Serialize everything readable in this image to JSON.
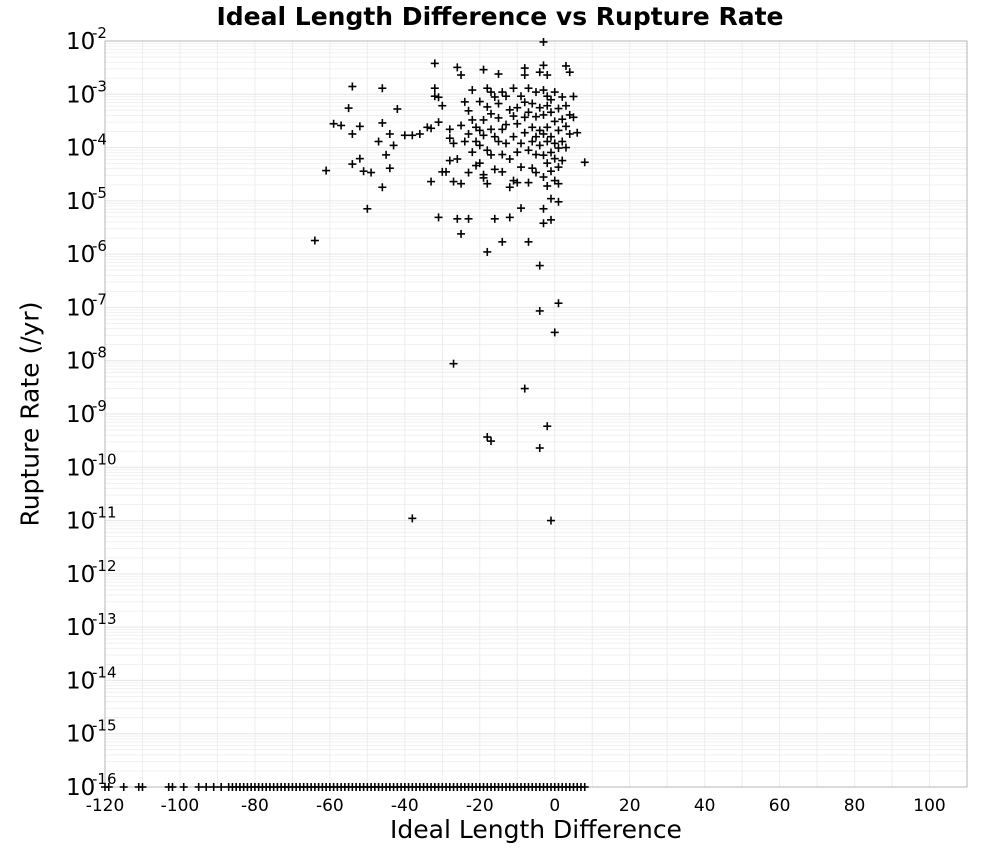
{
  "chart_data": {
    "type": "scatter",
    "title": "Ideal Length Difference vs Rupture Rate",
    "xlabel": "Ideal Length Difference",
    "ylabel": "Rupture Rate (/yr)",
    "xlim": [
      -120,
      110
    ],
    "ylim": [
      1e-16,
      0.01
    ],
    "y_scale": "log",
    "x_ticks": [
      -120,
      -100,
      -80,
      -60,
      -40,
      -20,
      0,
      20,
      40,
      60,
      80,
      100
    ],
    "y_tick_exponents": [
      -2,
      -3,
      -4,
      -5,
      -6,
      -7,
      -8,
      -9,
      -10,
      -11,
      -12,
      -13,
      -14,
      -15,
      -16
    ],
    "y_tick_base": "10",
    "grid": true,
    "legend": "none",
    "marker": "plus",
    "colors": {
      "marker": "#000000",
      "grid": "#e6e6e6",
      "frame": "#b5b5b5"
    },
    "series": [
      {
        "points": [
          [
            -64,
            1.8e-06
          ],
          [
            -61,
            3.7e-05
          ],
          [
            -59,
            0.00028
          ],
          [
            -57,
            0.00026
          ],
          [
            -55,
            0.00055
          ],
          [
            -54,
            0.0014
          ],
          [
            -54,
            4.9e-05
          ],
          [
            -54,
            0.00018
          ],
          [
            -52,
            6.2e-05
          ],
          [
            -52,
            0.00025
          ],
          [
            -51,
            3.6e-05
          ],
          [
            -50,
            7.1e-06
          ],
          [
            -49,
            3.4e-05
          ],
          [
            -47,
            0.00013
          ],
          [
            -46,
            0.0013
          ],
          [
            -46,
            0.00029
          ],
          [
            -46,
            1.8e-05
          ],
          [
            -45,
            7.3e-05
          ],
          [
            -44,
            4.1e-05
          ],
          [
            -44,
            0.00018
          ],
          [
            -43,
            0.00011
          ],
          [
            -42,
            0.00053
          ],
          [
            -40,
            0.00017
          ],
          [
            -38,
            1.1e-11
          ],
          [
            -38,
            0.00017
          ],
          [
            -36,
            0.00018
          ],
          [
            -34,
            0.00024
          ],
          [
            -33,
            0.00023
          ],
          [
            -33,
            2.3e-05
          ],
          [
            -32,
            0.0038
          ],
          [
            -32,
            0.0013
          ],
          [
            -32,
            0.00092
          ],
          [
            -31,
            0.00088
          ],
          [
            -31,
            4.9e-06
          ],
          [
            -31,
            0.0003
          ],
          [
            -30,
            3.5e-05
          ],
          [
            -30,
            0.00061
          ],
          [
            -29,
            3.5e-05
          ],
          [
            -28,
            0.00022
          ],
          [
            -28,
            5.7e-05
          ],
          [
            -28,
            0.00015
          ],
          [
            -27,
            2.3e-05
          ],
          [
            -27,
            0.00012
          ],
          [
            -27,
            8.8e-09
          ],
          [
            -26,
            0.0032
          ],
          [
            -26,
            6.1e-05
          ],
          [
            -26,
            4.6e-06
          ],
          [
            -25,
            0.0023
          ],
          [
            -25,
            2.4e-06
          ],
          [
            -25,
            2.1e-05
          ],
          [
            -25,
            0.00026
          ],
          [
            -24,
            0.00072
          ],
          [
            -24,
            0.00013
          ],
          [
            -23,
            0.00049
          ],
          [
            -23,
            0.00018
          ],
          [
            -23,
            3.4e-05
          ],
          [
            -23,
            4.6e-06
          ],
          [
            -22,
            0.0012
          ],
          [
            -22,
            8.2e-05
          ],
          [
            -22,
            0.00033
          ],
          [
            -21,
            0.00013
          ],
          [
            -21,
            0.00024
          ],
          [
            -21,
            4.6e-05
          ],
          [
            -20,
            0.00073
          ],
          [
            -20,
            0.00021
          ],
          [
            -20,
            5.1e-05
          ],
          [
            -20,
            0.00011
          ],
          [
            -19,
            0.0029
          ],
          [
            -19,
            3.1e-05
          ],
          [
            -19,
            2.7e-05
          ],
          [
            -19,
            0.00017
          ],
          [
            -19,
            0.00033
          ],
          [
            -18,
            0.0013
          ],
          [
            -18,
            0.00058
          ],
          [
            -18,
            8.9e-05
          ],
          [
            -18,
            3.7e-10
          ],
          [
            -18,
            1.1e-06
          ],
          [
            -18,
            2.1e-05
          ],
          [
            -17,
            0.0011
          ],
          [
            -17,
            0.00022
          ],
          [
            -17,
            0.00043
          ],
          [
            -17,
            3.1e-10
          ],
          [
            -17,
            7.3e-05
          ],
          [
            -16,
            0.00016
          ],
          [
            -16,
            0.00089
          ],
          [
            -16,
            3.9e-05
          ],
          [
            -16,
            4.6e-06
          ],
          [
            -15,
            0.0024
          ],
          [
            -15,
            0.00013
          ],
          [
            -15,
            0.00036
          ],
          [
            -15,
            0.00067
          ],
          [
            -14,
            0.0011
          ],
          [
            -14,
            3.5e-05
          ],
          [
            -14,
            7.4e-05
          ],
          [
            -14,
            0.00022
          ],
          [
            -14,
            1.7e-06
          ],
          [
            -13,
            0.00092
          ],
          [
            -13,
            0.00027
          ],
          [
            -13,
            0.00012
          ],
          [
            -12,
            6.1e-05
          ],
          [
            -12,
            1.8e-05
          ],
          [
            -12,
            0.00051
          ],
          [
            -12,
            4.9e-06
          ],
          [
            -11,
            0.00016
          ],
          [
            -11,
            0.00039
          ],
          [
            -11,
            2.4e-05
          ],
          [
            -11,
            0.0013
          ],
          [
            -10,
            8.2e-05
          ],
          [
            -10,
            0.00056
          ],
          [
            -10,
            0.00028
          ],
          [
            -10,
            2.2e-05
          ],
          [
            -9,
            7.3e-06
          ],
          [
            -9,
            0.00012
          ],
          [
            -9,
            0.00092
          ],
          [
            -9,
            4.3e-05
          ],
          [
            -8,
            0.0031
          ],
          [
            -8,
            0.0023
          ],
          [
            -8,
            0.00071
          ],
          [
            -8,
            0.00037
          ],
          [
            -8,
            3e-09
          ],
          [
            -8,
            0.00019
          ],
          [
            -7,
            8.9e-05
          ],
          [
            -7,
            2.2e-05
          ],
          [
            -7,
            0.00046
          ],
          [
            -7,
            0.0013
          ],
          [
            -7,
            1.7e-06
          ],
          [
            -6,
            0.00013
          ],
          [
            -6,
            4.1e-05
          ],
          [
            -6,
            0.00024
          ],
          [
            -6,
            0.00067
          ],
          [
            -5,
            0.0011
          ],
          [
            -5,
            3.4e-05
          ],
          [
            -5,
            0.00016
          ],
          [
            -5,
            0.00038
          ],
          [
            -5,
            7.4e-05
          ],
          [
            -4,
            0.0026
          ],
          [
            -4,
            0.00056
          ],
          [
            -4,
            0.00021
          ],
          [
            -4,
            0.00011
          ],
          [
            -4,
            6.1e-07
          ],
          [
            -4,
            8.6e-08
          ],
          [
            -4,
            2.3e-10
          ],
          [
            -3,
            0.0096
          ],
          [
            -3,
            0.0035
          ],
          [
            -3,
            0.0012
          ],
          [
            -3,
            0.00041
          ],
          [
            -3,
            0.00018
          ],
          [
            -3,
            7.2e-05
          ],
          [
            -3,
            2.8e-05
          ],
          [
            -3,
            7.1e-06
          ],
          [
            -3,
            3.8e-06
          ],
          [
            -2,
            0.00061
          ],
          [
            -2,
            0.00024
          ],
          [
            -2,
            0.00013
          ],
          [
            -2,
            5.1e-05
          ],
          [
            -2,
            1.9e-05
          ],
          [
            -2,
            5.9e-10
          ],
          [
            -2,
            0.0023
          ],
          [
            -2,
            0.00092
          ],
          [
            -1,
            0.00046
          ],
          [
            -1,
            0.00016
          ],
          [
            -1,
            8.1e-05
          ],
          [
            -1,
            3.6e-05
          ],
          [
            -1,
            1.1e-05
          ],
          [
            -1,
            4.4e-06
          ],
          [
            -1,
            1e-11
          ],
          [
            -1,
            0.00079
          ],
          [
            0,
            0.00031
          ],
          [
            0,
            0.00012
          ],
          [
            0,
            6.2e-05
          ],
          [
            0,
            2.4e-05
          ],
          [
            0,
            3.4e-08
          ],
          [
            0,
            0.0011
          ],
          [
            1,
            0.00054
          ],
          [
            1,
            0.00021
          ],
          [
            1,
            9.8e-05
          ],
          [
            1,
            4.3e-05
          ],
          [
            1,
            9.6e-06
          ],
          [
            1,
            1.2e-07
          ],
          [
            1,
            2.1e-05
          ],
          [
            2,
            0.00089
          ],
          [
            2,
            0.00034
          ],
          [
            2,
            0.00013
          ],
          [
            2,
            5.7e-05
          ],
          [
            3,
            0.0034
          ],
          [
            3,
            0.00061
          ],
          [
            3,
            0.00025
          ],
          [
            3,
            0.0001
          ],
          [
            4,
            0.0026
          ],
          [
            4,
            0.00041
          ],
          [
            4,
            0.00018
          ],
          [
            5,
            0.00091
          ],
          [
            5,
            0.00037
          ],
          [
            6,
            0.00019
          ],
          [
            8,
            5.3e-05
          ],
          [
            -120,
            1e-16
          ],
          [
            -119,
            1e-16
          ],
          [
            -115,
            1e-16
          ],
          [
            -111,
            1e-16
          ],
          [
            -110,
            1e-16
          ],
          [
            -103,
            1e-16
          ],
          [
            -102,
            1e-16
          ],
          [
            -99,
            1e-16
          ],
          [
            -95,
            1e-16
          ],
          [
            -93,
            1e-16
          ],
          [
            -91,
            1e-16
          ],
          [
            -89,
            1e-16
          ],
          [
            -87,
            1e-16
          ],
          [
            -86,
            1e-16
          ],
          [
            -85,
            1e-16
          ],
          [
            -84,
            1e-16
          ],
          [
            -83,
            1e-16
          ],
          [
            -82,
            1e-16
          ],
          [
            -81,
            1e-16
          ],
          [
            -80,
            1e-16
          ],
          [
            -79,
            1e-16
          ],
          [
            -78,
            1e-16
          ],
          [
            -77,
            1e-16
          ],
          [
            -76,
            1e-16
          ],
          [
            -75,
            1e-16
          ],
          [
            -74,
            1e-16
          ],
          [
            -73,
            1e-16
          ],
          [
            -72,
            1e-16
          ],
          [
            -71,
            1e-16
          ],
          [
            -70,
            1e-16
          ],
          [
            -69,
            1e-16
          ],
          [
            -68,
            1e-16
          ],
          [
            -67,
            1e-16
          ],
          [
            -66,
            1e-16
          ],
          [
            -65,
            1e-16
          ],
          [
            -64,
            1e-16
          ],
          [
            -63,
            1e-16
          ],
          [
            -62,
            1e-16
          ],
          [
            -61,
            1e-16
          ],
          [
            -60,
            1e-16
          ],
          [
            -59,
            1e-16
          ],
          [
            -58,
            1e-16
          ],
          [
            -57,
            1e-16
          ],
          [
            -56,
            1e-16
          ],
          [
            -55,
            1e-16
          ],
          [
            -54,
            1e-16
          ],
          [
            -53,
            1e-16
          ],
          [
            -52,
            1e-16
          ],
          [
            -51,
            1e-16
          ],
          [
            -50,
            1e-16
          ],
          [
            -49,
            1e-16
          ],
          [
            -48,
            1e-16
          ],
          [
            -47,
            1e-16
          ],
          [
            -46,
            1e-16
          ],
          [
            -45,
            1e-16
          ],
          [
            -44,
            1e-16
          ],
          [
            -43,
            1e-16
          ],
          [
            -42,
            1e-16
          ],
          [
            -41,
            1e-16
          ],
          [
            -40,
            1e-16
          ],
          [
            -39,
            1e-16
          ],
          [
            -38,
            1e-16
          ],
          [
            -37,
            1e-16
          ],
          [
            -36,
            1e-16
          ],
          [
            -35,
            1e-16
          ],
          [
            -34,
            1e-16
          ],
          [
            -33,
            1e-16
          ],
          [
            -32,
            1e-16
          ],
          [
            -31,
            1e-16
          ],
          [
            -30,
            1e-16
          ],
          [
            -29,
            1e-16
          ],
          [
            -28,
            1e-16
          ],
          [
            -27,
            1e-16
          ],
          [
            -26,
            1e-16
          ],
          [
            -25,
            1e-16
          ],
          [
            -24,
            1e-16
          ],
          [
            -23,
            1e-16
          ],
          [
            -22,
            1e-16
          ],
          [
            -21,
            1e-16
          ],
          [
            -20,
            1e-16
          ],
          [
            -19,
            1e-16
          ],
          [
            -18,
            1e-16
          ],
          [
            -17,
            1e-16
          ],
          [
            -16,
            1e-16
          ],
          [
            -15,
            1e-16
          ],
          [
            -14,
            1e-16
          ],
          [
            -13,
            1e-16
          ],
          [
            -12,
            1e-16
          ],
          [
            -11,
            1e-16
          ],
          [
            -10,
            1e-16
          ],
          [
            -9,
            1e-16
          ],
          [
            -8,
            1e-16
          ],
          [
            -7,
            1e-16
          ],
          [
            -6,
            1e-16
          ],
          [
            -5,
            1e-16
          ],
          [
            -4,
            1e-16
          ],
          [
            -3,
            1e-16
          ],
          [
            -2,
            1e-16
          ],
          [
            -1,
            1e-16
          ],
          [
            0,
            1e-16
          ],
          [
            1,
            1e-16
          ],
          [
            2,
            1e-16
          ],
          [
            3,
            1e-16
          ],
          [
            4,
            1e-16
          ],
          [
            5,
            1e-16
          ],
          [
            6,
            1e-16
          ],
          [
            7,
            1e-16
          ],
          [
            8,
            1e-16
          ]
        ]
      }
    ]
  }
}
